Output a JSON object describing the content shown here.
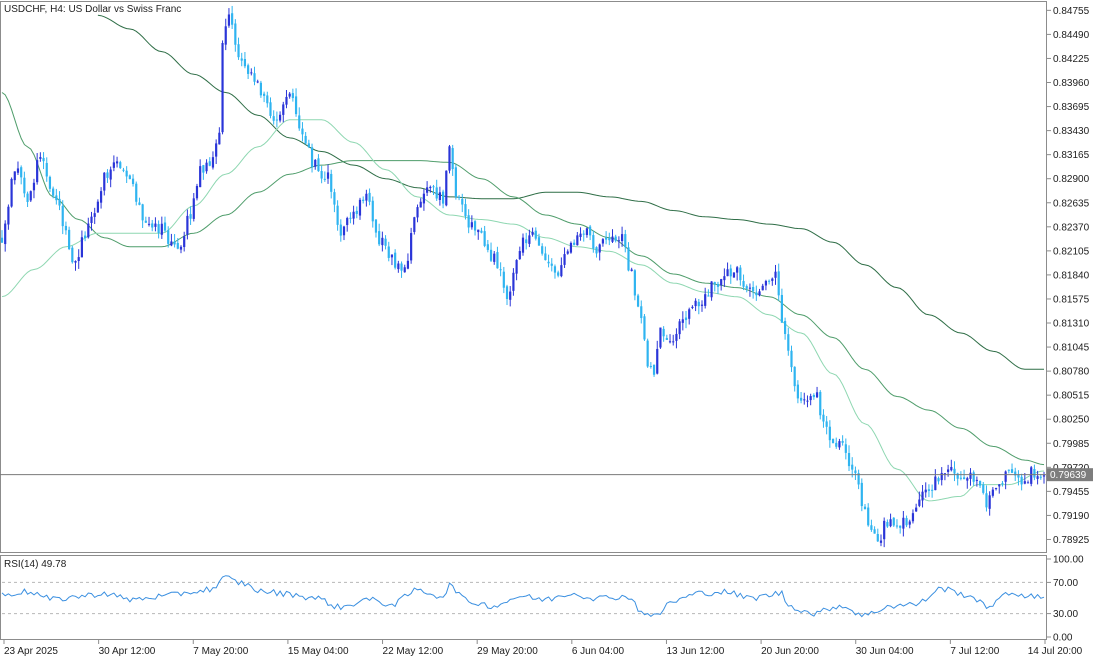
{
  "colors": {
    "background": "#ffffff",
    "frame": "#8c8c8c",
    "text": "#202020",
    "bull_candle": "#2a35d8",
    "bear_candle": "#2fb4f0",
    "ma_fast": "#8ed7b1",
    "ma_mid": "#4f9d6b",
    "ma_slow": "#2f6e47",
    "rsi_line": "#3a8fe0",
    "price_line": "#7a7a7a",
    "price_tag_bg": "#7d7d7d",
    "price_tag_text": "#ffffff",
    "rsi_level_line": "#b8b8b8"
  },
  "chart_data": {
    "type": "candlestick",
    "title": "USDCHF, H4:  US Dollar vs Swiss Franc",
    "symbol": "USDCHF",
    "timeframe": "H4",
    "price_axis": {
      "ticks": [
        "0.84755",
        "0.84490",
        "0.84225",
        "0.83960",
        "0.83695",
        "0.83430",
        "0.83165",
        "0.82900",
        "0.82635",
        "0.82370",
        "0.82105",
        "0.81840",
        "0.81575",
        "0.81310",
        "0.81045",
        "0.80780",
        "0.80515",
        "0.80250",
        "0.79985",
        "0.79720",
        "0.79455",
        "0.79190",
        "0.78925"
      ],
      "range": [
        0.78787,
        0.84847
      ]
    },
    "current_price": "0.79639",
    "time_axis": {
      "labels": [
        "23 Apr 2025",
        "30 Apr 12:00",
        "7 May 20:00",
        "15 May 04:00",
        "22 May 12:00",
        "29 May 20:00",
        "6 Jun 04:00",
        "13 Jun 12:00",
        "20 Jun 20:00",
        "30 Jun 04:00",
        "7 Jul 12:00",
        "14 Jul 20:00"
      ]
    },
    "price_anchors": [
      [
        0,
        0.8225
      ],
      [
        4,
        0.83
      ],
      [
        8,
        0.827
      ],
      [
        12,
        0.8315
      ],
      [
        16,
        0.8275
      ],
      [
        20,
        0.824
      ],
      [
        22,
        0.8195
      ],
      [
        28,
        0.8245
      ],
      [
        32,
        0.829
      ],
      [
        36,
        0.831
      ],
      [
        40,
        0.8285
      ],
      [
        44,
        0.825
      ],
      [
        48,
        0.824
      ],
      [
        52,
        0.8225
      ],
      [
        55,
        0.821
      ],
      [
        59,
        0.825
      ],
      [
        62,
        0.83
      ],
      [
        66,
        0.831
      ],
      [
        68,
        0.8345
      ],
      [
        69,
        0.8435
      ],
      [
        71,
        0.8465
      ],
      [
        74,
        0.843
      ],
      [
        78,
        0.841
      ],
      [
        82,
        0.8375
      ],
      [
        86,
        0.8355
      ],
      [
        90,
        0.838
      ],
      [
        94,
        0.834
      ],
      [
        98,
        0.8305
      ],
      [
        102,
        0.829
      ],
      [
        106,
        0.8235
      ],
      [
        110,
        0.8255
      ],
      [
        114,
        0.827
      ],
      [
        118,
        0.8225
      ],
      [
        122,
        0.82
      ],
      [
        126,
        0.8195
      ],
      [
        130,
        0.826
      ],
      [
        134,
        0.8275
      ],
      [
        138,
        0.827
      ],
      [
        140,
        0.833
      ],
      [
        142,
        0.8275
      ],
      [
        146,
        0.824
      ],
      [
        150,
        0.8225
      ],
      [
        154,
        0.82
      ],
      [
        158,
        0.8165
      ],
      [
        162,
        0.8215
      ],
      [
        166,
        0.8235
      ],
      [
        170,
        0.8195
      ],
      [
        174,
        0.8185
      ],
      [
        178,
        0.8215
      ],
      [
        182,
        0.823
      ],
      [
        186,
        0.8215
      ],
      [
        190,
        0.822
      ],
      [
        194,
        0.8225
      ],
      [
        196,
        0.819
      ],
      [
        200,
        0.814
      ],
      [
        202,
        0.809
      ],
      [
        204,
        0.808
      ],
      [
        206,
        0.8125
      ],
      [
        210,
        0.8115
      ],
      [
        214,
        0.814
      ],
      [
        218,
        0.8155
      ],
      [
        222,
        0.817
      ],
      [
        226,
        0.8185
      ],
      [
        230,
        0.819
      ],
      [
        234,
        0.8165
      ],
      [
        238,
        0.817
      ],
      [
        242,
        0.8185
      ],
      [
        244,
        0.8135
      ],
      [
        246,
        0.8095
      ],
      [
        250,
        0.804
      ],
      [
        254,
        0.8055
      ],
      [
        258,
        0.801
      ],
      [
        262,
        0.7995
      ],
      [
        266,
        0.7975
      ],
      [
        270,
        0.792
      ],
      [
        274,
        0.7895
      ],
      [
        278,
        0.7915
      ],
      [
        282,
        0.791
      ],
      [
        286,
        0.793
      ],
      [
        290,
        0.795
      ],
      [
        294,
        0.7965
      ],
      [
        298,
        0.7965
      ],
      [
        302,
        0.796
      ],
      [
        306,
        0.7955
      ],
      [
        308,
        0.793
      ],
      [
        312,
        0.796
      ],
      [
        316,
        0.7965
      ],
      [
        320,
        0.796
      ],
      [
        324,
        0.797
      ],
      [
        326,
        0.7964
      ]
    ],
    "ma_fast_anchors": [
      [
        0,
        0.816
      ],
      [
        10,
        0.819
      ],
      [
        20,
        0.8215
      ],
      [
        30,
        0.823
      ],
      [
        40,
        0.823
      ],
      [
        50,
        0.823
      ],
      [
        60,
        0.826
      ],
      [
        70,
        0.8295
      ],
      [
        80,
        0.8325
      ],
      [
        90,
        0.8355
      ],
      [
        100,
        0.8355
      ],
      [
        110,
        0.833
      ],
      [
        120,
        0.83
      ],
      [
        130,
        0.827
      ],
      [
        140,
        0.825
      ],
      [
        150,
        0.8245
      ],
      [
        160,
        0.824
      ],
      [
        170,
        0.8225
      ],
      [
        180,
        0.8215
      ],
      [
        190,
        0.821
      ],
      [
        200,
        0.8195
      ],
      [
        210,
        0.8175
      ],
      [
        220,
        0.8165
      ],
      [
        230,
        0.816
      ],
      [
        240,
        0.814
      ],
      [
        250,
        0.812
      ],
      [
        260,
        0.8075
      ],
      [
        270,
        0.802
      ],
      [
        280,
        0.797
      ],
      [
        290,
        0.7935
      ],
      [
        300,
        0.794
      ],
      [
        305,
        0.7953
      ],
      [
        315,
        0.7953
      ],
      [
        326,
        0.7968
      ]
    ],
    "ma_mid_anchors": [
      [
        0,
        0.8385
      ],
      [
        8,
        0.8325
      ],
      [
        16,
        0.827
      ],
      [
        24,
        0.8245
      ],
      [
        32,
        0.8225
      ],
      [
        40,
        0.8215
      ],
      [
        50,
        0.8215
      ],
      [
        60,
        0.823
      ],
      [
        70,
        0.825
      ],
      [
        80,
        0.8275
      ],
      [
        90,
        0.8295
      ],
      [
        100,
        0.8305
      ],
      [
        110,
        0.831
      ],
      [
        120,
        0.831
      ],
      [
        130,
        0.831
      ],
      [
        140,
        0.8308
      ],
      [
        150,
        0.829
      ],
      [
        160,
        0.827
      ],
      [
        170,
        0.825
      ],
      [
        180,
        0.824
      ],
      [
        190,
        0.8225
      ],
      [
        200,
        0.8205
      ],
      [
        210,
        0.8185
      ],
      [
        220,
        0.8175
      ],
      [
        230,
        0.817
      ],
      [
        240,
        0.816
      ],
      [
        250,
        0.814
      ],
      [
        260,
        0.8115
      ],
      [
        270,
        0.808
      ],
      [
        280,
        0.805
      ],
      [
        290,
        0.8035
      ],
      [
        300,
        0.8015
      ],
      [
        310,
        0.7995
      ],
      [
        320,
        0.798
      ],
      [
        326,
        0.7975
      ]
    ],
    "ma_slow_anchors": [
      [
        30,
        0.847
      ],
      [
        40,
        0.8455
      ],
      [
        50,
        0.843
      ],
      [
        60,
        0.8405
      ],
      [
        70,
        0.8385
      ],
      [
        80,
        0.836
      ],
      [
        90,
        0.8335
      ],
      [
        100,
        0.832
      ],
      [
        110,
        0.8305
      ],
      [
        120,
        0.829
      ],
      [
        130,
        0.828
      ],
      [
        140,
        0.827
      ],
      [
        150,
        0.8268
      ],
      [
        160,
        0.8268
      ],
      [
        170,
        0.8275
      ],
      [
        180,
        0.8275
      ],
      [
        190,
        0.827
      ],
      [
        200,
        0.8265
      ],
      [
        210,
        0.8255
      ],
      [
        220,
        0.8248
      ],
      [
        230,
        0.8245
      ],
      [
        240,
        0.824
      ],
      [
        250,
        0.8235
      ],
      [
        260,
        0.822
      ],
      [
        270,
        0.8195
      ],
      [
        280,
        0.817
      ],
      [
        290,
        0.814
      ],
      [
        300,
        0.812
      ],
      [
        310,
        0.81
      ],
      [
        320,
        0.808
      ],
      [
        326,
        0.808
      ]
    ],
    "rsi": {
      "label": "RSI(14) 49.78",
      "value": 49.78,
      "ticks": [
        "100.00",
        "70.00",
        "30.00",
        "0.00"
      ],
      "range": [
        0,
        100
      ],
      "levels": [
        70,
        30
      ],
      "anchors": [
        [
          0,
          55
        ],
        [
          8,
          58
        ],
        [
          16,
          48
        ],
        [
          24,
          52
        ],
        [
          32,
          56
        ],
        [
          40,
          48
        ],
        [
          50,
          52
        ],
        [
          60,
          58
        ],
        [
          66,
          62
        ],
        [
          70,
          76
        ],
        [
          74,
          70
        ],
        [
          82,
          58
        ],
        [
          90,
          55
        ],
        [
          98,
          50
        ],
        [
          106,
          38
        ],
        [
          114,
          48
        ],
        [
          122,
          42
        ],
        [
          130,
          60
        ],
        [
          138,
          52
        ],
        [
          140,
          66
        ],
        [
          146,
          45
        ],
        [
          154,
          40
        ],
        [
          162,
          52
        ],
        [
          170,
          48
        ],
        [
          178,
          56
        ],
        [
          186,
          50
        ],
        [
          196,
          52
        ],
        [
          200,
          33
        ],
        [
          204,
          26
        ],
        [
          210,
          46
        ],
        [
          218,
          56
        ],
        [
          226,
          58
        ],
        [
          234,
          50
        ],
        [
          244,
          56
        ],
        [
          246,
          40
        ],
        [
          254,
          30
        ],
        [
          262,
          40
        ],
        [
          270,
          28
        ],
        [
          278,
          40
        ],
        [
          286,
          42
        ],
        [
          294,
          62
        ],
        [
          302,
          54
        ],
        [
          308,
          40
        ],
        [
          316,
          56
        ],
        [
          326,
          50
        ]
      ]
    }
  }
}
